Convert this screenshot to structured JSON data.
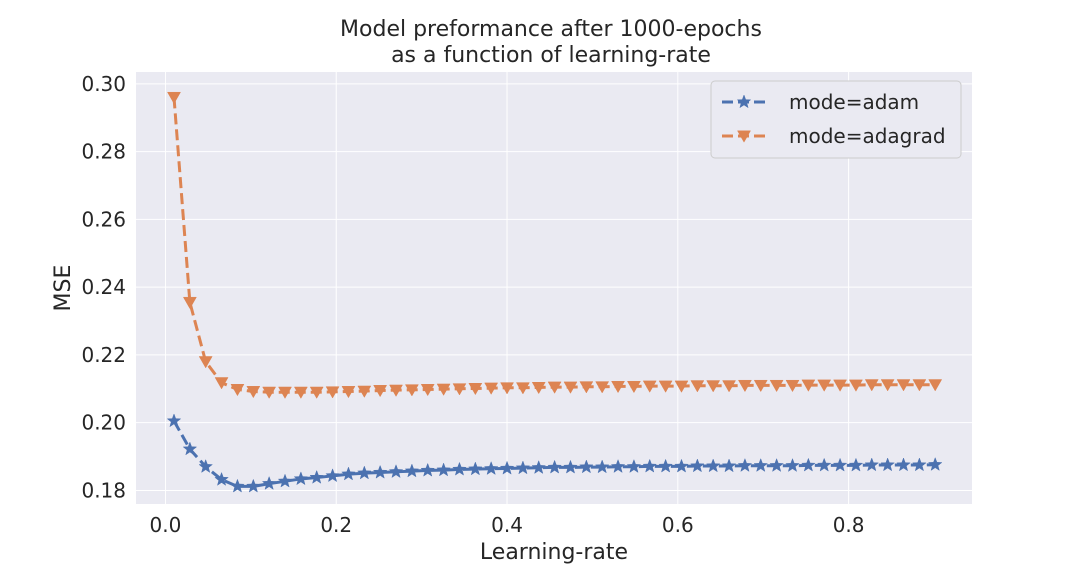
{
  "chart_data": {
    "type": "line",
    "title": "Model preformance after 1000-epochs\nas a function of learning-rate",
    "xlabel": "Learning-rate",
    "ylabel": "MSE",
    "xlim": [
      -0.0345,
      0.9445
    ],
    "ylim": [
      0.176,
      0.3035
    ],
    "xticks": [
      "0.0",
      "0.2",
      "0.4",
      "0.6",
      "0.8"
    ],
    "yticks": [
      "0.18",
      "0.20",
      "0.22",
      "0.24",
      "0.26",
      "0.28",
      "0.30"
    ],
    "grid": true,
    "legend_position": "top-right",
    "series": [
      {
        "name": "mode=adam",
        "color": "#4c72b0",
        "marker": "star",
        "linestyle": "dashed-then-solid",
        "x": [
          0.01,
          0.0286,
          0.0471,
          0.0657,
          0.0843,
          0.1029,
          0.1214,
          0.14,
          0.1586,
          0.1771,
          0.1957,
          0.2143,
          0.2329,
          0.2514,
          0.27,
          0.2886,
          0.3071,
          0.3257,
          0.3443,
          0.3629,
          0.3814,
          0.4,
          0.4186,
          0.4371,
          0.4557,
          0.4743,
          0.4929,
          0.5114,
          0.53,
          0.5486,
          0.5671,
          0.5857,
          0.6043,
          0.6229,
          0.6414,
          0.66,
          0.6786,
          0.6971,
          0.7157,
          0.7343,
          0.7529,
          0.7714,
          0.79,
          0.8086,
          0.8271,
          0.8457,
          0.8643,
          0.8829,
          0.9014
        ],
        "y": [
          0.2005,
          0.1922,
          0.187,
          0.1832,
          0.1812,
          0.1812,
          0.182,
          0.1827,
          0.1834,
          0.1838,
          0.1843,
          0.1848,
          0.1851,
          0.1853,
          0.1855,
          0.1857,
          0.1859,
          0.186,
          0.1862,
          0.1863,
          0.1864,
          0.1865,
          0.1866,
          0.1867,
          0.1868,
          0.1868,
          0.1869,
          0.1869,
          0.187,
          0.187,
          0.1871,
          0.1871,
          0.1871,
          0.1872,
          0.1872,
          0.1872,
          0.1873,
          0.1873,
          0.1873,
          0.1873,
          0.1874,
          0.1874,
          0.1874,
          0.1874,
          0.1875,
          0.1875,
          0.1875,
          0.1875,
          0.1876
        ]
      },
      {
        "name": "mode=adagrad",
        "color": "#dd8452",
        "marker": "triangle-down",
        "linestyle": "dashed",
        "x": [
          0.01,
          0.0286,
          0.0471,
          0.0657,
          0.0843,
          0.1029,
          0.1214,
          0.14,
          0.1586,
          0.1771,
          0.1957,
          0.2143,
          0.2329,
          0.2514,
          0.27,
          0.2886,
          0.3071,
          0.3257,
          0.3443,
          0.3629,
          0.3814,
          0.4,
          0.4186,
          0.4371,
          0.4557,
          0.4743,
          0.4929,
          0.5114,
          0.53,
          0.5486,
          0.5671,
          0.5857,
          0.6043,
          0.6229,
          0.6414,
          0.66,
          0.6786,
          0.6971,
          0.7157,
          0.7343,
          0.7529,
          0.7714,
          0.79,
          0.8086,
          0.8271,
          0.8457,
          0.8643,
          0.8829,
          0.9014
        ],
        "y": [
          0.296,
          0.2355,
          0.218,
          0.2118,
          0.2098,
          0.2092,
          0.209,
          0.209,
          0.209,
          0.209,
          0.2091,
          0.2092,
          0.2093,
          0.2095,
          0.2096,
          0.2097,
          0.2098,
          0.2099,
          0.21,
          0.2101,
          0.2102,
          0.2103,
          0.2103,
          0.2104,
          0.2105,
          0.2105,
          0.2106,
          0.2106,
          0.2107,
          0.2107,
          0.2108,
          0.2108,
          0.2108,
          0.2109,
          0.2109,
          0.2109,
          0.211,
          0.211,
          0.211,
          0.211,
          0.2111,
          0.2111,
          0.2111,
          0.2111,
          0.2112,
          0.2112,
          0.2112,
          0.2112,
          0.2112
        ]
      }
    ]
  }
}
